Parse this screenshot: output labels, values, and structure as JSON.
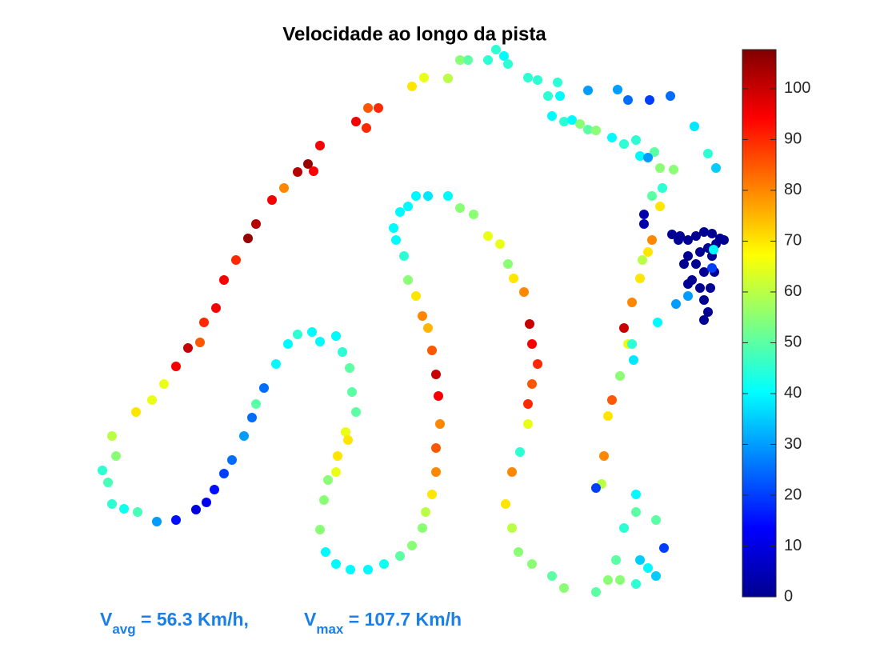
{
  "chart_data": {
    "type": "scatter",
    "title": "Velocidade ao longo da pista",
    "xlim": [
      110,
      920
    ],
    "ylim": [
      790,
      50
    ],
    "x": [
      128,
      135,
      140,
      155,
      172,
      196,
      220,
      245,
      258,
      268,
      280,
      290,
      305,
      315,
      320,
      330,
      345,
      360,
      372,
      390,
      400,
      420,
      428,
      437,
      440,
      445,
      432,
      435,
      422,
      420,
      410,
      405,
      400,
      407,
      420,
      438,
      460,
      480,
      500,
      515,
      528,
      532,
      540,
      545,
      545,
      550,
      548,
      545,
      540,
      535,
      528,
      520,
      510,
      505,
      495,
      492,
      500,
      510,
      520,
      535,
      560,
      575,
      592,
      610,
      625,
      635,
      642,
      655,
      662,
      665,
      672,
      665,
      660,
      660,
      650,
      640,
      632,
      640,
      648,
      665,
      690,
      705,
      745,
      760,
      770,
      780,
      795,
      795,
      752,
      745,
      755,
      760,
      765,
      775,
      792,
      785,
      780,
      790,
      800,
      803,
      810,
      815,
      800,
      810,
      820,
      830,
      820,
      795,
      775,
      790,
      822,
      845,
      860,
      140,
      145,
      170,
      190,
      205,
      220,
      235,
      250,
      255,
      270,
      280,
      295,
      310,
      320,
      340,
      355,
      372,
      385,
      392,
      400,
      445,
      460,
      473,
      458,
      515,
      530,
      560,
      575,
      585,
      610,
      620,
      630,
      635,
      660,
      672,
      685,
      697,
      700,
      690,
      705,
      715,
      725,
      735,
      745,
      765,
      780,
      795,
      800,
      818,
      825,
      842,
      810,
      735,
      772,
      785,
      812,
      838,
      868,
      885,
      895,
      815,
      825,
      828,
      805,
      805,
      840,
      850,
      860,
      870,
      880,
      890,
      900,
      905,
      860,
      870,
      880,
      865,
      875,
      880,
      885,
      880,
      855,
      860,
      890,
      893,
      888,
      848,
      895,
      885,
      875,
      890,
      892
    ],
    "y": [
      588,
      603,
      630,
      636,
      640,
      652,
      650,
      637,
      628,
      612,
      592,
      575,
      545,
      522,
      505,
      485,
      455,
      430,
      418,
      415,
      427,
      420,
      440,
      460,
      490,
      515,
      540,
      550,
      570,
      590,
      600,
      625,
      662,
      690,
      705,
      712,
      712,
      705,
      695,
      682,
      660,
      640,
      618,
      590,
      560,
      530,
      495,
      468,
      438,
      410,
      395,
      370,
      350,
      320,
      300,
      285,
      265,
      258,
      245,
      245,
      245,
      260,
      268,
      295,
      305,
      330,
      348,
      365,
      405,
      430,
      455,
      480,
      505,
      530,
      565,
      590,
      630,
      660,
      690,
      705,
      720,
      735,
      740,
      725,
      700,
      660,
      640,
      618,
      605,
      610,
      570,
      520,
      500,
      470,
      450,
      430,
      410,
      378,
      348,
      325,
      315,
      300,
      700,
      710,
      720,
      685,
      650,
      730,
      725,
      430,
      403,
      380,
      370,
      545,
      570,
      515,
      500,
      480,
      458,
      435,
      428,
      403,
      385,
      350,
      325,
      298,
      280,
      250,
      235,
      215,
      205,
      214,
      182,
      152,
      135,
      135,
      160,
      108,
      97,
      98,
      75,
      75,
      75,
      62,
      70,
      80,
      97,
      100,
      120,
      103,
      120,
      145,
      152,
      150,
      155,
      162,
      163,
      172,
      180,
      175,
      195,
      190,
      210,
      212,
      197,
      113,
      112,
      125,
      125,
      120,
      158,
      192,
      210,
      245,
      258,
      235,
      268,
      280,
      293,
      295,
      300,
      295,
      290,
      292,
      298,
      300,
      320,
      330,
      340,
      350,
      360,
      375,
      390,
      400,
      330,
      355,
      320,
      340,
      360,
      300,
      305,
      310,
      315,
      335,
      312
    ],
    "speed": [
      45,
      48,
      45,
      42,
      48,
      30,
      15,
      10,
      12,
      15,
      20,
      25,
      30,
      25,
      50,
      25,
      40,
      40,
      45,
      40,
      40,
      40,
      45,
      50,
      50,
      50,
      65,
      70,
      70,
      65,
      55,
      55,
      55,
      40,
      40,
      40,
      40,
      42,
      50,
      55,
      55,
      60,
      70,
      80,
      85,
      80,
      95,
      100,
      85,
      75,
      80,
      70,
      55,
      45,
      40,
      40,
      40,
      40,
      40,
      38,
      40,
      55,
      55,
      65,
      65,
      55,
      70,
      80,
      100,
      95,
      90,
      85,
      90,
      65,
      45,
      80,
      70,
      60,
      55,
      55,
      50,
      55,
      50,
      55,
      50,
      45,
      50,
      40,
      60,
      20,
      80,
      70,
      85,
      55,
      38,
      65,
      100,
      80,
      70,
      60,
      70,
      80,
      35,
      40,
      35,
      20,
      50,
      45,
      55,
      45,
      40,
      30,
      30,
      60,
      55,
      70,
      65,
      65,
      95,
      100,
      85,
      90,
      95,
      95,
      90,
      105,
      102,
      95,
      80,
      102,
      105,
      95,
      95,
      95,
      85,
      90,
      90,
      70,
      65,
      60,
      55,
      50,
      45,
      45,
      40,
      45,
      45,
      45,
      45,
      45,
      40,
      40,
      45,
      40,
      55,
      50,
      55,
      40,
      45,
      45,
      40,
      50,
      55,
      55,
      30,
      30,
      30,
      25,
      20,
      25,
      38,
      45,
      35,
      50,
      70,
      45,
      5,
      5,
      2,
      2,
      2,
      2,
      2,
      2,
      2,
      2,
      2,
      2,
      2,
      2,
      2,
      2,
      2,
      2,
      2,
      2,
      2,
      2,
      2,
      2,
      2,
      2,
      2,
      20,
      40
    ],
    "colormap": "jet",
    "colorbar": {
      "clim": [
        0,
        107.7
      ],
      "ticks": [
        0,
        10,
        20,
        30,
        40,
        50,
        60,
        70,
        80,
        90,
        100
      ]
    },
    "annotation": {
      "color": "#1a7fe6",
      "avg": {
        "symbol": "V",
        "subscript": "avg",
        "text": " = 56.3 Km/h,"
      },
      "max": {
        "symbol": "V",
        "subscript": "max",
        "text": " = 107.7 Km/h"
      }
    }
  }
}
